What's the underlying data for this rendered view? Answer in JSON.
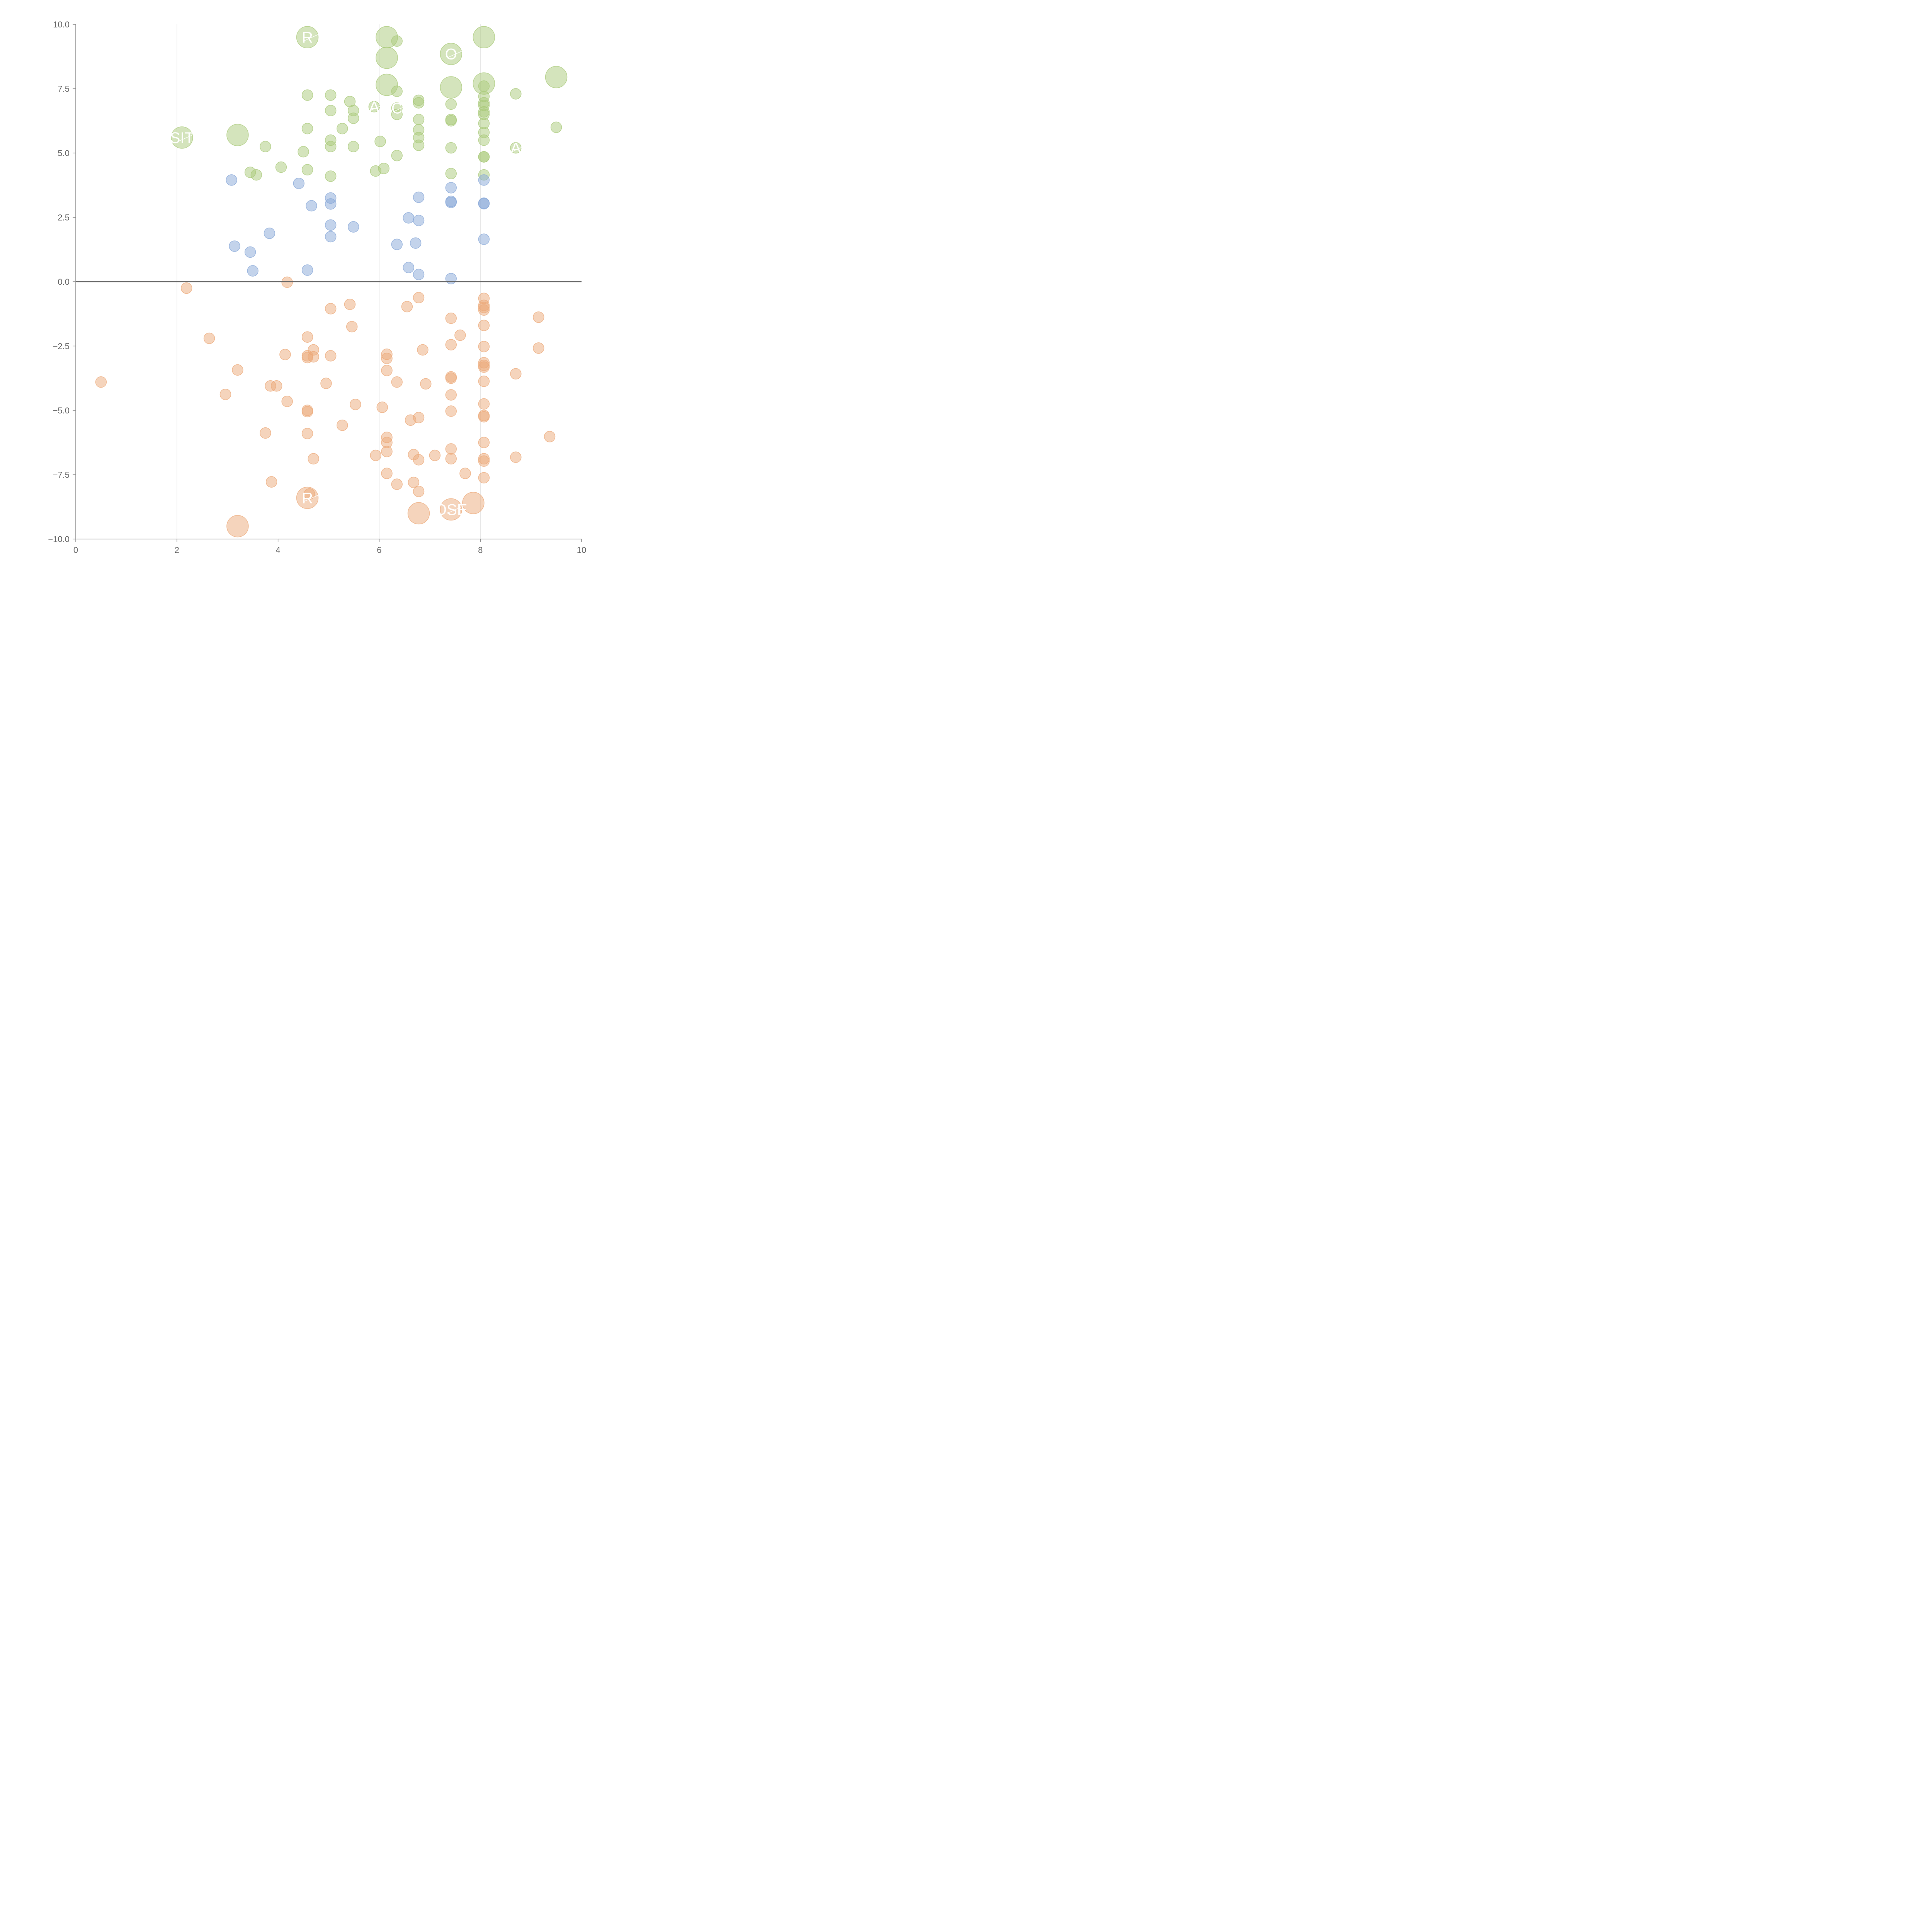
{
  "chart_data": {
    "type": "scatter",
    "title": "",
    "xlabel": "",
    "ylabel": "",
    "xlim": [
      0,
      10
    ],
    "ylim": [
      -10,
      10
    ],
    "x_ticks": [
      "0",
      "2",
      "4",
      "6",
      "8",
      "10"
    ],
    "y_ticks": [
      "10.0",
      "7.5",
      "5.0",
      "2.5",
      "0.0",
      "−2.5",
      "−5.0",
      "−7.5",
      "−10.0"
    ],
    "x_tick_values": [
      0,
      2,
      4,
      6,
      8,
      10
    ],
    "y_tick_values": [
      10,
      7.5,
      5,
      2.5,
      0,
      -2.5,
      -5,
      -7.5,
      -10
    ],
    "vertical_grid": true,
    "zero_line": true,
    "series": [
      {
        "color": "#a9c97a",
        "points": [
          {
            "x": 4.58,
            "y": 9.5,
            "r": 28
          },
          {
            "x": 6.15,
            "y": 9.5,
            "r": 28
          },
          {
            "x": 6.35,
            "y": 9.35,
            "r": 14
          },
          {
            "x": 8.07,
            "y": 9.5,
            "r": 28
          },
          {
            "x": 7.42,
            "y": 8.85,
            "r": 28
          },
          {
            "x": 6.15,
            "y": 8.7,
            "r": 28
          },
          {
            "x": 9.5,
            "y": 7.95,
            "r": 28
          },
          {
            "x": 8.07,
            "y": 7.7,
            "r": 28
          },
          {
            "x": 6.15,
            "y": 7.65,
            "r": 28
          },
          {
            "x": 7.42,
            "y": 7.55,
            "r": 28
          },
          {
            "x": 6.35,
            "y": 7.4,
            "r": 14
          },
          {
            "x": 8.7,
            "y": 7.3,
            "r": 14
          },
          {
            "x": 4.58,
            "y": 7.25,
            "r": 14
          },
          {
            "x": 5.04,
            "y": 7.25,
            "r": 14
          },
          {
            "x": 8.07,
            "y": 7.6,
            "r": 14
          },
          {
            "x": 8.07,
            "y": 7.2,
            "r": 14
          },
          {
            "x": 6.78,
            "y": 7.05,
            "r": 14
          },
          {
            "x": 5.42,
            "y": 7.0,
            "r": 14
          },
          {
            "x": 6.78,
            "y": 6.95,
            "r": 14
          },
          {
            "x": 8.07,
            "y": 6.95,
            "r": 14
          },
          {
            "x": 7.42,
            "y": 6.9,
            "r": 14
          },
          {
            "x": 8.07,
            "y": 6.85,
            "r": 14
          },
          {
            "x": 5.9,
            "y": 6.8,
            "r": 14
          },
          {
            "x": 6.35,
            "y": 6.75,
            "r": 14
          },
          {
            "x": 5.04,
            "y": 6.65,
            "r": 14
          },
          {
            "x": 5.49,
            "y": 6.65,
            "r": 14
          },
          {
            "x": 8.07,
            "y": 6.6,
            "r": 14
          },
          {
            "x": 6.35,
            "y": 6.5,
            "r": 14
          },
          {
            "x": 8.07,
            "y": 6.5,
            "r": 14
          },
          {
            "x": 5.49,
            "y": 6.35,
            "r": 14
          },
          {
            "x": 7.42,
            "y": 6.3,
            "r": 14
          },
          {
            "x": 7.42,
            "y": 6.25,
            "r": 14
          },
          {
            "x": 6.78,
            "y": 6.3,
            "r": 14
          },
          {
            "x": 8.07,
            "y": 6.15,
            "r": 14
          },
          {
            "x": 4.58,
            "y": 5.95,
            "r": 14
          },
          {
            "x": 5.27,
            "y": 5.95,
            "r": 14
          },
          {
            "x": 9.5,
            "y": 6.0,
            "r": 14
          },
          {
            "x": 6.78,
            "y": 5.9,
            "r": 14
          },
          {
            "x": 8.07,
            "y": 5.8,
            "r": 14
          },
          {
            "x": 3.2,
            "y": 5.7,
            "r": 28
          },
          {
            "x": 2.1,
            "y": 5.6,
            "r": 28
          },
          {
            "x": 6.78,
            "y": 5.6,
            "r": 14
          },
          {
            "x": 5.04,
            "y": 5.5,
            "r": 14
          },
          {
            "x": 8.07,
            "y": 5.5,
            "r": 14
          },
          {
            "x": 6.02,
            "y": 5.45,
            "r": 14
          },
          {
            "x": 6.78,
            "y": 5.3,
            "r": 14
          },
          {
            "x": 3.75,
            "y": 5.25,
            "r": 14
          },
          {
            "x": 5.04,
            "y": 5.25,
            "r": 14
          },
          {
            "x": 5.49,
            "y": 5.25,
            "r": 14
          },
          {
            "x": 7.42,
            "y": 5.2,
            "r": 14
          },
          {
            "x": 8.7,
            "y": 5.2,
            "r": 14
          },
          {
            "x": 4.5,
            "y": 5.05,
            "r": 14
          },
          {
            "x": 6.35,
            "y": 4.9,
            "r": 14
          },
          {
            "x": 8.07,
            "y": 4.85,
            "r": 14
          },
          {
            "x": 8.07,
            "y": 4.85,
            "r": 14
          },
          {
            "x": 4.06,
            "y": 4.45,
            "r": 14
          },
          {
            "x": 6.09,
            "y": 4.4,
            "r": 14
          },
          {
            "x": 4.58,
            "y": 4.35,
            "r": 14
          },
          {
            "x": 5.93,
            "y": 4.3,
            "r": 14
          },
          {
            "x": 3.45,
            "y": 4.25,
            "r": 14
          },
          {
            "x": 7.42,
            "y": 4.2,
            "r": 14
          },
          {
            "x": 3.57,
            "y": 4.15,
            "r": 14
          },
          {
            "x": 5.04,
            "y": 4.1,
            "r": 14
          },
          {
            "x": 8.07,
            "y": 4.15,
            "r": 14
          }
        ]
      },
      {
        "color": "#88a8d8",
        "points": [
          {
            "x": 3.08,
            "y": 3.95,
            "r": 14
          },
          {
            "x": 8.07,
            "y": 3.95,
            "r": 14
          },
          {
            "x": 4.41,
            "y": 3.82,
            "r": 14
          },
          {
            "x": 7.42,
            "y": 3.65,
            "r": 14
          },
          {
            "x": 6.78,
            "y": 3.28,
            "r": 14
          },
          {
            "x": 5.04,
            "y": 3.25,
            "r": 14
          },
          {
            "x": 7.42,
            "y": 3.12,
            "r": 14
          },
          {
            "x": 7.42,
            "y": 3.08,
            "r": 14
          },
          {
            "x": 8.07,
            "y": 3.05,
            "r": 14
          },
          {
            "x": 8.07,
            "y": 3.03,
            "r": 14
          },
          {
            "x": 5.04,
            "y": 3.02,
            "r": 14
          },
          {
            "x": 4.66,
            "y": 2.95,
            "r": 14
          },
          {
            "x": 6.58,
            "y": 2.48,
            "r": 14
          },
          {
            "x": 6.78,
            "y": 2.38,
            "r": 14
          },
          {
            "x": 5.04,
            "y": 2.2,
            "r": 14
          },
          {
            "x": 5.49,
            "y": 2.13,
            "r": 14
          },
          {
            "x": 3.83,
            "y": 1.88,
            "r": 14
          },
          {
            "x": 5.04,
            "y": 1.75,
            "r": 14
          },
          {
            "x": 8.07,
            "y": 1.65,
            "r": 14
          },
          {
            "x": 6.72,
            "y": 1.5,
            "r": 14
          },
          {
            "x": 6.35,
            "y": 1.45,
            "r": 14
          },
          {
            "x": 3.14,
            "y": 1.38,
            "r": 14
          },
          {
            "x": 3.45,
            "y": 1.15,
            "r": 14
          },
          {
            "x": 6.58,
            "y": 0.55,
            "r": 14
          },
          {
            "x": 3.5,
            "y": 0.42,
            "r": 14
          },
          {
            "x": 4.58,
            "y": 0.45,
            "r": 14
          },
          {
            "x": 6.78,
            "y": 0.28,
            "r": 14
          },
          {
            "x": 7.42,
            "y": 0.12,
            "r": 14
          }
        ]
      },
      {
        "color": "#ecaa7a",
        "points": [
          {
            "x": 4.18,
            "y": -0.02,
            "r": 14
          },
          {
            "x": 2.19,
            "y": -0.25,
            "r": 14
          },
          {
            "x": 6.78,
            "y": -0.62,
            "r": 14
          },
          {
            "x": 8.07,
            "y": -0.65,
            "r": 14
          },
          {
            "x": 5.42,
            "y": -0.88,
            "r": 14
          },
          {
            "x": 8.07,
            "y": -0.92,
            "r": 14
          },
          {
            "x": 6.55,
            "y": -0.97,
            "r": 14
          },
          {
            "x": 8.07,
            "y": -1.0,
            "r": 14
          },
          {
            "x": 5.04,
            "y": -1.05,
            "r": 14
          },
          {
            "x": 8.07,
            "y": -1.1,
            "r": 14
          },
          {
            "x": 9.15,
            "y": -1.38,
            "r": 14
          },
          {
            "x": 7.42,
            "y": -1.42,
            "r": 14
          },
          {
            "x": 8.07,
            "y": -1.7,
            "r": 14
          },
          {
            "x": 5.46,
            "y": -1.75,
            "r": 14
          },
          {
            "x": 7.6,
            "y": -2.08,
            "r": 14
          },
          {
            "x": 4.58,
            "y": -2.15,
            "r": 14
          },
          {
            "x": 2.64,
            "y": -2.2,
            "r": 14
          },
          {
            "x": 7.42,
            "y": -2.45,
            "r": 14
          },
          {
            "x": 8.07,
            "y": -2.52,
            "r": 14
          },
          {
            "x": 9.15,
            "y": -2.58,
            "r": 14
          },
          {
            "x": 4.7,
            "y": -2.65,
            "r": 14
          },
          {
            "x": 6.86,
            "y": -2.65,
            "r": 14
          },
          {
            "x": 4.14,
            "y": -2.83,
            "r": 14
          },
          {
            "x": 6.15,
            "y": -2.82,
            "r": 14
          },
          {
            "x": 4.58,
            "y": -2.88,
            "r": 14
          },
          {
            "x": 5.04,
            "y": -2.88,
            "r": 14
          },
          {
            "x": 4.7,
            "y": -2.92,
            "r": 14
          },
          {
            "x": 4.58,
            "y": -2.95,
            "r": 14
          },
          {
            "x": 6.15,
            "y": -2.98,
            "r": 14
          },
          {
            "x": 8.07,
            "y": -3.15,
            "r": 14
          },
          {
            "x": 8.07,
            "y": -3.25,
            "r": 14
          },
          {
            "x": 8.07,
            "y": -3.32,
            "r": 14
          },
          {
            "x": 3.2,
            "y": -3.43,
            "r": 14
          },
          {
            "x": 6.15,
            "y": -3.45,
            "r": 14
          },
          {
            "x": 8.7,
            "y": -3.58,
            "r": 14
          },
          {
            "x": 7.42,
            "y": -3.7,
            "r": 14
          },
          {
            "x": 7.42,
            "y": -3.75,
            "r": 14
          },
          {
            "x": 8.07,
            "y": -3.87,
            "r": 14
          },
          {
            "x": 6.35,
            "y": -3.9,
            "r": 14
          },
          {
            "x": 0.5,
            "y": -3.9,
            "r": 14
          },
          {
            "x": 4.95,
            "y": -3.95,
            "r": 14
          },
          {
            "x": 6.92,
            "y": -3.97,
            "r": 14
          },
          {
            "x": 3.85,
            "y": -4.05,
            "r": 14
          },
          {
            "x": 3.97,
            "y": -4.05,
            "r": 14
          },
          {
            "x": 2.96,
            "y": -4.38,
            "r": 14
          },
          {
            "x": 7.42,
            "y": -4.4,
            "r": 14
          },
          {
            "x": 4.18,
            "y": -4.65,
            "r": 14
          },
          {
            "x": 5.53,
            "y": -4.77,
            "r": 14
          },
          {
            "x": 8.07,
            "y": -4.75,
            "r": 14
          },
          {
            "x": 6.06,
            "y": -4.88,
            "r": 14
          },
          {
            "x": 4.58,
            "y": -5.0,
            "r": 14
          },
          {
            "x": 4.58,
            "y": -5.05,
            "r": 14
          },
          {
            "x": 7.42,
            "y": -5.03,
            "r": 14
          },
          {
            "x": 8.07,
            "y": -5.2,
            "r": 14
          },
          {
            "x": 8.07,
            "y": -5.25,
            "r": 14
          },
          {
            "x": 6.78,
            "y": -5.28,
            "r": 14
          },
          {
            "x": 6.62,
            "y": -5.38,
            "r": 14
          },
          {
            "x": 5.27,
            "y": -5.58,
            "r": 14
          },
          {
            "x": 3.75,
            "y": -5.88,
            "r": 14
          },
          {
            "x": 4.58,
            "y": -5.9,
            "r": 14
          },
          {
            "x": 9.37,
            "y": -6.02,
            "r": 14
          },
          {
            "x": 6.15,
            "y": -6.05,
            "r": 14
          },
          {
            "x": 6.15,
            "y": -6.25,
            "r": 14
          },
          {
            "x": 8.07,
            "y": -6.25,
            "r": 14
          },
          {
            "x": 7.42,
            "y": -6.5,
            "r": 14
          },
          {
            "x": 6.15,
            "y": -6.6,
            "r": 14
          },
          {
            "x": 6.68,
            "y": -6.72,
            "r": 14
          },
          {
            "x": 7.1,
            "y": -6.75,
            "r": 14
          },
          {
            "x": 5.93,
            "y": -6.75,
            "r": 14
          },
          {
            "x": 8.7,
            "y": -6.82,
            "r": 14
          },
          {
            "x": 4.7,
            "y": -6.88,
            "r": 14
          },
          {
            "x": 7.42,
            "y": -6.88,
            "r": 14
          },
          {
            "x": 8.07,
            "y": -6.88,
            "r": 14
          },
          {
            "x": 6.78,
            "y": -6.92,
            "r": 14
          },
          {
            "x": 8.07,
            "y": -6.97,
            "r": 14
          },
          {
            "x": 7.7,
            "y": -7.45,
            "r": 14
          },
          {
            "x": 6.15,
            "y": -7.45,
            "r": 14
          },
          {
            "x": 8.07,
            "y": -7.62,
            "r": 14
          },
          {
            "x": 3.87,
            "y": -7.78,
            "r": 14
          },
          {
            "x": 6.68,
            "y": -7.8,
            "r": 14
          },
          {
            "x": 6.35,
            "y": -7.87,
            "r": 14
          },
          {
            "x": 6.78,
            "y": -8.15,
            "r": 14
          },
          {
            "x": 4.62,
            "y": -8.25,
            "r": 14
          },
          {
            "x": 4.58,
            "y": -8.4,
            "r": 28
          },
          {
            "x": 7.86,
            "y": -8.6,
            "r": 28
          },
          {
            "x": 7.42,
            "y": -8.85,
            "r": 28
          },
          {
            "x": 6.78,
            "y": -9.0,
            "r": 28
          },
          {
            "x": 3.2,
            "y": -9.5,
            "r": 28
          }
        ]
      }
    ],
    "point_labels": [
      {
        "text": "SIT",
        "x": 2.1,
        "y": 5.6
      },
      {
        "text": "R",
        "x": 4.58,
        "y": 9.5
      },
      {
        "text": "A",
        "x": 5.9,
        "y": 6.8
      },
      {
        "text": "C",
        "x": 6.35,
        "y": 6.75
      },
      {
        "text": "O",
        "x": 7.42,
        "y": 8.85
      },
      {
        "text": "A",
        "x": 8.7,
        "y": 5.2
      },
      {
        "text": "R",
        "x": 4.58,
        "y": -8.4
      },
      {
        "text": "OSE",
        "x": 7.42,
        "y": -8.85
      }
    ]
  }
}
